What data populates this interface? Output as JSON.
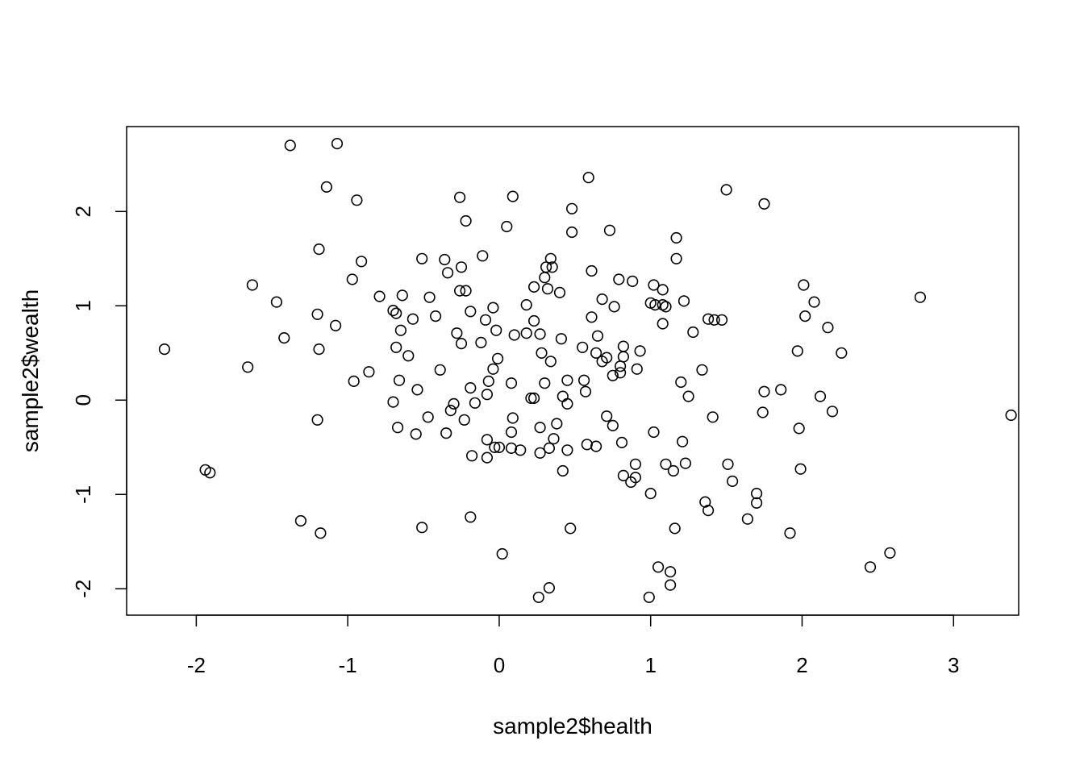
{
  "chart_data": {
    "type": "scatter",
    "title": "",
    "xlabel": "sample2$health",
    "ylabel": "sample2$wealth",
    "xlim": [
      -2.46,
      3.43
    ],
    "ylim": [
      -2.28,
      2.9
    ],
    "xticks": [
      -2,
      -1,
      0,
      1,
      2,
      3
    ],
    "xtick_labels": [
      "-2",
      "-1",
      "0",
      "1",
      "2",
      "3"
    ],
    "yticks": [
      -2,
      -1,
      0,
      1,
      2
    ],
    "ytick_labels": [
      "-2",
      "-1",
      "0",
      "1",
      "2"
    ],
    "grid": false,
    "legend": "none",
    "marker": "open-circle",
    "color": "#000000",
    "points": [
      [
        -2.21,
        0.54
      ],
      [
        -1.38,
        2.7
      ],
      [
        -1.07,
        2.72
      ],
      [
        -1.14,
        2.26
      ],
      [
        -0.94,
        2.12
      ],
      [
        -1.19,
        1.6
      ],
      [
        -0.91,
        1.47
      ],
      [
        -1.63,
        1.22
      ],
      [
        -1.47,
        1.04
      ],
      [
        -1.42,
        0.66
      ],
      [
        -1.2,
        0.91
      ],
      [
        -1.19,
        0.54
      ],
      [
        -1.08,
        0.79
      ],
      [
        -0.97,
        1.28
      ],
      [
        -1.66,
        0.35
      ],
      [
        -0.96,
        0.2
      ],
      [
        -0.86,
        0.3
      ],
      [
        -1.2,
        -0.21
      ],
      [
        -1.94,
        -0.74
      ],
      [
        -1.91,
        -0.77
      ],
      [
        -1.31,
        -1.28
      ],
      [
        -1.18,
        -1.41
      ],
      [
        -0.79,
        1.1
      ],
      [
        -0.7,
        0.95
      ],
      [
        -0.68,
        0.92
      ],
      [
        -0.64,
        1.11
      ],
      [
        -0.65,
        0.74
      ],
      [
        -0.57,
        0.86
      ],
      [
        -0.68,
        0.56
      ],
      [
        -0.6,
        0.47
      ],
      [
        -0.66,
        0.21
      ],
      [
        -0.7,
        -0.02
      ],
      [
        -0.54,
        0.11
      ],
      [
        -0.67,
        -0.29
      ],
      [
        -0.55,
        -0.36
      ],
      [
        -0.51,
        1.5
      ],
      [
        -0.46,
        1.09
      ],
      [
        -0.42,
        0.89
      ],
      [
        -0.39,
        0.32
      ],
      [
        -0.47,
        -0.18
      ],
      [
        -0.36,
        1.49
      ],
      [
        -0.34,
        1.35
      ],
      [
        -0.25,
        1.41
      ],
      [
        -0.26,
        1.16
      ],
      [
        -0.22,
        1.16
      ],
      [
        -0.19,
        0.94
      ],
      [
        -0.09,
        0.85
      ],
      [
        -0.28,
        0.71
      ],
      [
        -0.25,
        0.6
      ],
      [
        -0.12,
        0.61
      ],
      [
        -0.35,
        -0.35
      ],
      [
        -0.32,
        -0.11
      ],
      [
        -0.3,
        -0.04
      ],
      [
        -0.23,
        -0.21
      ],
      [
        -0.19,
        0.13
      ],
      [
        -0.16,
        -0.03
      ],
      [
        -0.08,
        0.06
      ],
      [
        -0.07,
        0.2
      ],
      [
        -0.04,
        0.33
      ],
      [
        -0.01,
        0.44
      ],
      [
        -0.08,
        -0.42
      ],
      [
        -0.03,
        -0.5
      ],
      [
        0.0,
        -0.5
      ],
      [
        -0.18,
        -0.59
      ],
      [
        -0.08,
        -0.61
      ],
      [
        -0.26,
        2.15
      ],
      [
        -0.22,
        1.9
      ],
      [
        -0.11,
        1.53
      ],
      [
        -0.04,
        0.98
      ],
      [
        -0.02,
        0.74
      ],
      [
        0.09,
        2.16
      ],
      [
        0.05,
        1.84
      ],
      [
        0.18,
        1.01
      ],
      [
        0.23,
        0.84
      ],
      [
        0.1,
        0.69
      ],
      [
        0.18,
        0.71
      ],
      [
        0.27,
        0.7
      ],
      [
        0.23,
        1.2
      ],
      [
        0.3,
        1.3
      ],
      [
        0.31,
        1.41
      ],
      [
        0.32,
        1.18
      ],
      [
        0.34,
        1.5
      ],
      [
        0.35,
        1.41
      ],
      [
        0.4,
        1.14
      ],
      [
        0.41,
        0.65
      ],
      [
        0.28,
        0.5
      ],
      [
        0.34,
        0.41
      ],
      [
        0.08,
        0.18
      ],
      [
        0.3,
        0.18
      ],
      [
        0.21,
        0.02
      ],
      [
        0.23,
        0.02
      ],
      [
        0.09,
        -0.19
      ],
      [
        0.08,
        -0.34
      ],
      [
        0.27,
        -0.29
      ],
      [
        0.38,
        -0.25
      ],
      [
        0.36,
        -0.41
      ],
      [
        0.42,
        0.04
      ],
      [
        0.45,
        0.21
      ],
      [
        0.45,
        -0.04
      ],
      [
        0.08,
        -0.51
      ],
      [
        0.14,
        -0.53
      ],
      [
        0.27,
        -0.56
      ],
      [
        0.33,
        -0.51
      ],
      [
        0.45,
        -0.53
      ],
      [
        0.42,
        -0.75
      ],
      [
        0.02,
        -1.63
      ],
      [
        -0.51,
        -1.35
      ],
      [
        -0.19,
        -1.24
      ],
      [
        0.47,
        -1.36
      ],
      [
        0.33,
        -1.99
      ],
      [
        0.26,
        -2.09
      ],
      [
        0.59,
        2.36
      ],
      [
        0.48,
        2.03
      ],
      [
        0.48,
        1.78
      ],
      [
        0.73,
        1.8
      ],
      [
        0.61,
        1.37
      ],
      [
        0.79,
        1.28
      ],
      [
        0.88,
        1.26
      ],
      [
        0.61,
        0.88
      ],
      [
        0.68,
        1.07
      ],
      [
        0.76,
        0.99
      ],
      [
        0.65,
        0.68
      ],
      [
        0.55,
        0.56
      ],
      [
        0.64,
        0.5
      ],
      [
        0.68,
        0.41
      ],
      [
        0.71,
        0.45
      ],
      [
        0.82,
        0.57
      ],
      [
        0.82,
        0.46
      ],
      [
        0.8,
        0.36
      ],
      [
        0.8,
        0.29
      ],
      [
        0.75,
        0.26
      ],
      [
        0.91,
        0.33
      ],
      [
        0.93,
        0.52
      ],
      [
        0.56,
        0.21
      ],
      [
        0.57,
        0.09
      ],
      [
        0.71,
        -0.17
      ],
      [
        0.75,
        -0.27
      ],
      [
        0.81,
        -0.45
      ],
      [
        0.58,
        -0.47
      ],
      [
        0.64,
        -0.49
      ],
      [
        0.9,
        -0.68
      ],
      [
        0.82,
        -0.8
      ],
      [
        0.87,
        -0.87
      ],
      [
        0.9,
        -0.82
      ],
      [
        1.0,
        -0.99
      ],
      [
        1.02,
        -0.34
      ],
      [
        1.02,
        1.22
      ],
      [
        1.08,
        1.17
      ],
      [
        1.0,
        1.03
      ],
      [
        1.03,
        1.01
      ],
      [
        1.08,
        1.01
      ],
      [
        1.1,
        0.99
      ],
      [
        1.08,
        0.81
      ],
      [
        1.17,
        1.72
      ],
      [
        1.17,
        1.5
      ],
      [
        1.22,
        1.05
      ],
      [
        1.28,
        0.72
      ],
      [
        1.2,
        0.19
      ],
      [
        1.25,
        0.04
      ],
      [
        1.21,
        -0.44
      ],
      [
        1.23,
        -0.67
      ],
      [
        1.1,
        -0.68
      ],
      [
        1.15,
        -0.75
      ],
      [
        1.34,
        0.32
      ],
      [
        1.38,
        0.86
      ],
      [
        1.42,
        0.85
      ],
      [
        1.47,
        0.85
      ],
      [
        1.41,
        -0.18
      ],
      [
        1.51,
        -0.68
      ],
      [
        1.54,
        -0.86
      ],
      [
        1.36,
        -1.08
      ],
      [
        1.38,
        -1.17
      ],
      [
        1.16,
        -1.36
      ],
      [
        1.05,
        -1.77
      ],
      [
        1.13,
        -1.82
      ],
      [
        1.13,
        -1.96
      ],
      [
        0.99,
        -2.09
      ],
      [
        1.5,
        2.23
      ],
      [
        1.75,
        2.08
      ],
      [
        2.01,
        1.22
      ],
      [
        2.08,
        1.04
      ],
      [
        2.02,
        0.89
      ],
      [
        1.97,
        0.52
      ],
      [
        1.75,
        0.09
      ],
      [
        1.86,
        0.11
      ],
      [
        1.74,
        -0.13
      ],
      [
        1.98,
        -0.3
      ],
      [
        2.17,
        0.77
      ],
      [
        2.26,
        0.5
      ],
      [
        2.12,
        0.04
      ],
      [
        2.2,
        -0.12
      ],
      [
        1.99,
        -0.73
      ],
      [
        1.7,
        -0.99
      ],
      [
        1.7,
        -1.09
      ],
      [
        1.64,
        -1.26
      ],
      [
        1.92,
        -1.41
      ],
      [
        2.45,
        -1.77
      ],
      [
        2.58,
        -1.62
      ],
      [
        2.78,
        1.09
      ],
      [
        3.38,
        -0.16
      ]
    ]
  }
}
